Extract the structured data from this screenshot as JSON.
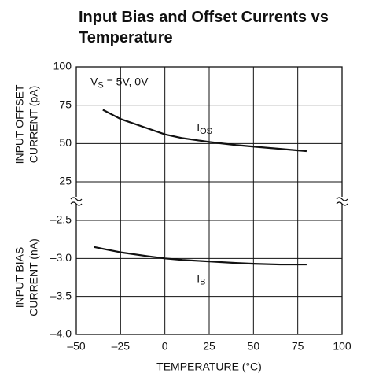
{
  "chart_data": [
    {
      "type": "line",
      "title": [
        "Input Bias and Offset Currents vs",
        "Temperature"
      ],
      "ylabel": [
        "INPUT OFFSET",
        "CURRENT (pA)"
      ],
      "ylim": [
        25,
        100
      ],
      "yticks": [
        100,
        75,
        50,
        25
      ],
      "xlim": [
        -50,
        100
      ],
      "annotations": [
        {
          "text": "V",
          "sub": "S",
          "rest": " = 5V, 0V",
          "x": -42,
          "y": 90
        },
        {
          "text": "I",
          "sub": "OS",
          "rest": "",
          "x": 18,
          "y": 60
        }
      ],
      "series": [
        {
          "name": "IOS",
          "color": "#111111",
          "x": [
            -35,
            -25,
            -10,
            0,
            10,
            25,
            40,
            50,
            65,
            80
          ],
          "values": [
            72,
            66,
            60,
            56,
            53.5,
            51,
            49,
            48,
            46.5,
            45
          ]
        }
      ]
    },
    {
      "type": "line",
      "ylabel": [
        "INPUT BIAS",
        "CURRENT (nA)"
      ],
      "xlabel": "TEMPERATURE (°C)",
      "ylim": [
        -4.0,
        -2.5
      ],
      "yticks": [
        {
          "value": -2.5,
          "label": "–2.5"
        },
        {
          "value": -3,
          "label": "–3.0"
        },
        {
          "value": -3.5,
          "label": "–3.5"
        },
        {
          "value": -4,
          "label": "–4.0"
        }
      ],
      "xlim": [
        -50,
        100
      ],
      "xticks": [
        {
          "value": -50,
          "label": "–50"
        },
        {
          "value": -25,
          "label": "–25"
        },
        0,
        25,
        50,
        75,
        100
      ],
      "annotations": [
        {
          "text": "I",
          "sub": "B",
          "rest": "",
          "x": 18,
          "y": -3.27
        }
      ],
      "series": [
        {
          "name": "IB",
          "color": "#111111",
          "x": [
            -40,
            -25,
            -10,
            0,
            10,
            25,
            40,
            50,
            65,
            80
          ],
          "values": [
            -2.85,
            -2.92,
            -2.97,
            -3.0,
            -3.02,
            -3.04,
            -3.06,
            -3.07,
            -3.08,
            -3.08
          ]
        }
      ]
    }
  ]
}
